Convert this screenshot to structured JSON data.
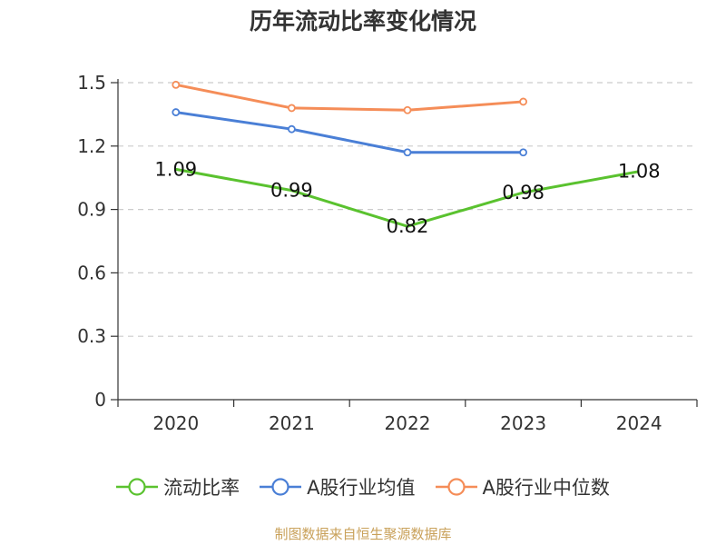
{
  "chart_data": {
    "type": "line",
    "title": "历年流动比率变化情况",
    "categories": [
      "2020",
      "2021",
      "2022",
      "2023",
      "2024"
    ],
    "ylim": [
      0,
      1.5
    ],
    "yticks": [
      "0",
      "0.3",
      "0.6",
      "0.9",
      "1.2",
      "1.5"
    ],
    "grid": true,
    "legend_position": "bottom",
    "series": [
      {
        "name": "流动比率",
        "color": "#5ac22f",
        "values": [
          1.09,
          0.99,
          0.82,
          0.98,
          1.08
        ],
        "labels": [
          "1.09",
          "0.99",
          "0.82",
          "0.98",
          "1.08"
        ],
        "show_labels": true,
        "show_markers": false
      },
      {
        "name": "A股行业均值",
        "color": "#4a7fd6",
        "values": [
          1.36,
          1.28,
          1.17,
          1.17,
          null
        ],
        "show_labels": false,
        "show_markers": true
      },
      {
        "name": "A股行业中位数",
        "color": "#f58d58",
        "values": [
          1.49,
          1.38,
          1.37,
          1.41,
          null
        ],
        "show_labels": false,
        "show_markers": true
      }
    ]
  },
  "source_note": "制图数据来自恒生聚源数据库"
}
